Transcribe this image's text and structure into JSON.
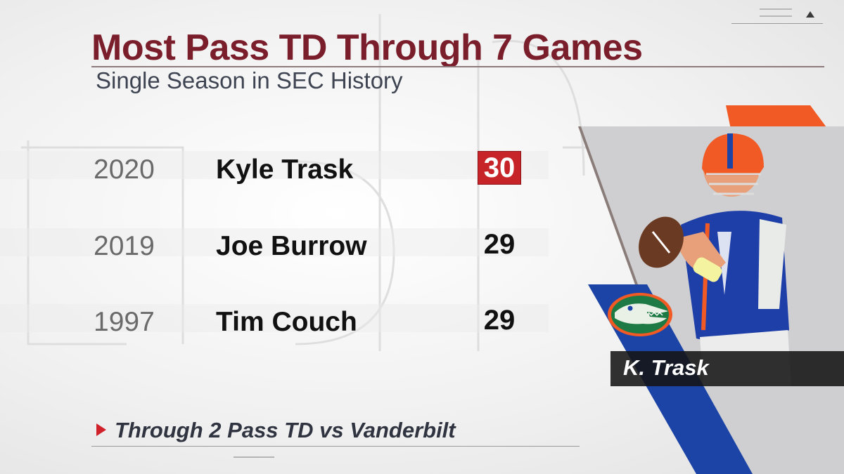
{
  "title": "Most Pass TD Through 7 Games",
  "subtitle": "Single Season in SEC History",
  "rows": [
    {
      "year": "2020",
      "player": "Kyle Trask",
      "td": "30",
      "highlighted": true
    },
    {
      "year": "2019",
      "player": "Joe Burrow",
      "td": "29",
      "highlighted": false
    },
    {
      "year": "1997",
      "player": "Tim Couch",
      "td": "29",
      "highlighted": false
    }
  ],
  "footer_note": "Through 2 Pass TD vs Vanderbilt",
  "player_tag": "K. Trask",
  "colors": {
    "title": "#7a1e2b",
    "highlight": "#c62428",
    "gator_blue": "#1c44a6",
    "gator_orange": "#f15a24",
    "gator_green": "#1e7a44"
  },
  "icons": {
    "team_logo": "gator-logo-icon",
    "footer_marker": "play-triangle-icon",
    "menu_marker": "up-triangle-icon"
  }
}
